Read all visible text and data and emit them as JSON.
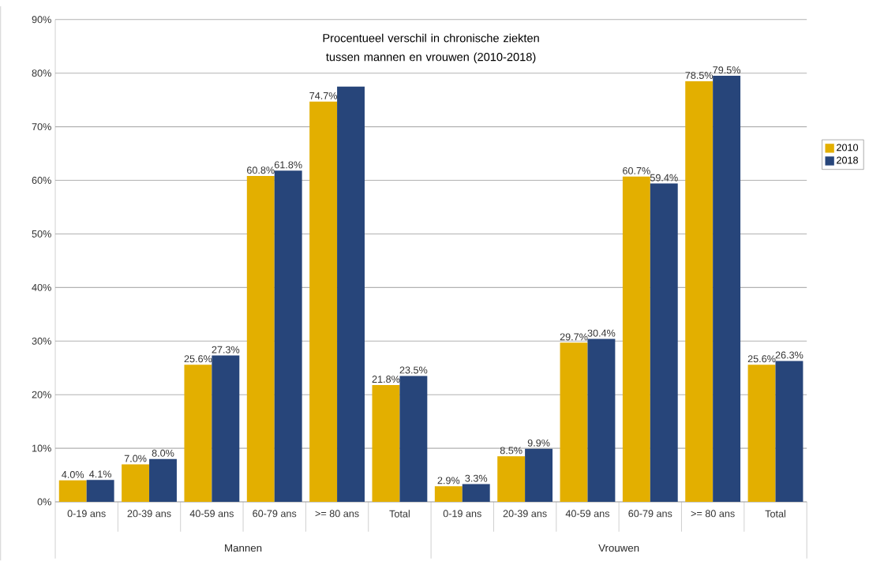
{
  "chart_data": {
    "type": "bar",
    "title": "Procentueel verschil in chronische ziekten tussen mannen en vrouwen (2010-2018)",
    "categories": [
      "0-19 ans",
      "20-39 ans",
      "40-59 ans",
      "60-79 ans",
      ">= 80 ans",
      "Total",
      "0-19 ans",
      "20-39 ans",
      "40-59 ans",
      "60-79 ans",
      ">= 80 ans",
      "Total"
    ],
    "series": [
      {
        "name": "2010",
        "color": "#e3af00",
        "values": [
          4.0,
          7.0,
          25.6,
          60.8,
          74.7,
          21.8,
          2.9,
          8.5,
          29.7,
          60.7,
          78.5,
          25.6
        ],
        "value_labels": [
          "4.0%",
          "7.0%",
          "25.6%",
          "60.8%",
          "74.7%",
          "21.8%",
          "2.9%",
          "8.5%",
          "29.7%",
          "60.7%",
          "78.5%",
          "25.6%"
        ]
      },
      {
        "name": "2018",
        "color": "#27457a",
        "values": [
          4.1,
          8.0,
          27.3,
          61.8,
          77.5,
          23.5,
          3.3,
          9.9,
          30.4,
          59.4,
          79.5,
          26.3
        ],
        "value_labels": [
          "4.1%",
          "8.0%",
          "27.3%",
          "61.8%",
          null,
          "23.5%",
          "3.3%",
          "9.9%",
          "30.4%",
          "59.4%",
          "79.5%",
          "26.3%"
        ]
      }
    ],
    "ylim": [
      0,
      90
    ],
    "yticks": [
      {
        "value": 0,
        "label": "0%"
      },
      {
        "value": 10,
        "label": "10%"
      },
      {
        "value": 20,
        "label": "20%"
      },
      {
        "value": 30,
        "label": "30%"
      },
      {
        "value": 40,
        "label": "40%"
      },
      {
        "value": 50,
        "label": "50%"
      },
      {
        "value": 60,
        "label": "60%"
      },
      {
        "value": 70,
        "label": "70%"
      },
      {
        "value": 80,
        "label": "80%"
      },
      {
        "value": 90,
        "label": "90%"
      }
    ],
    "annotations": [
      "Mannen",
      "Vrouwen"
    ],
    "grid": "y",
    "legend": "right"
  }
}
